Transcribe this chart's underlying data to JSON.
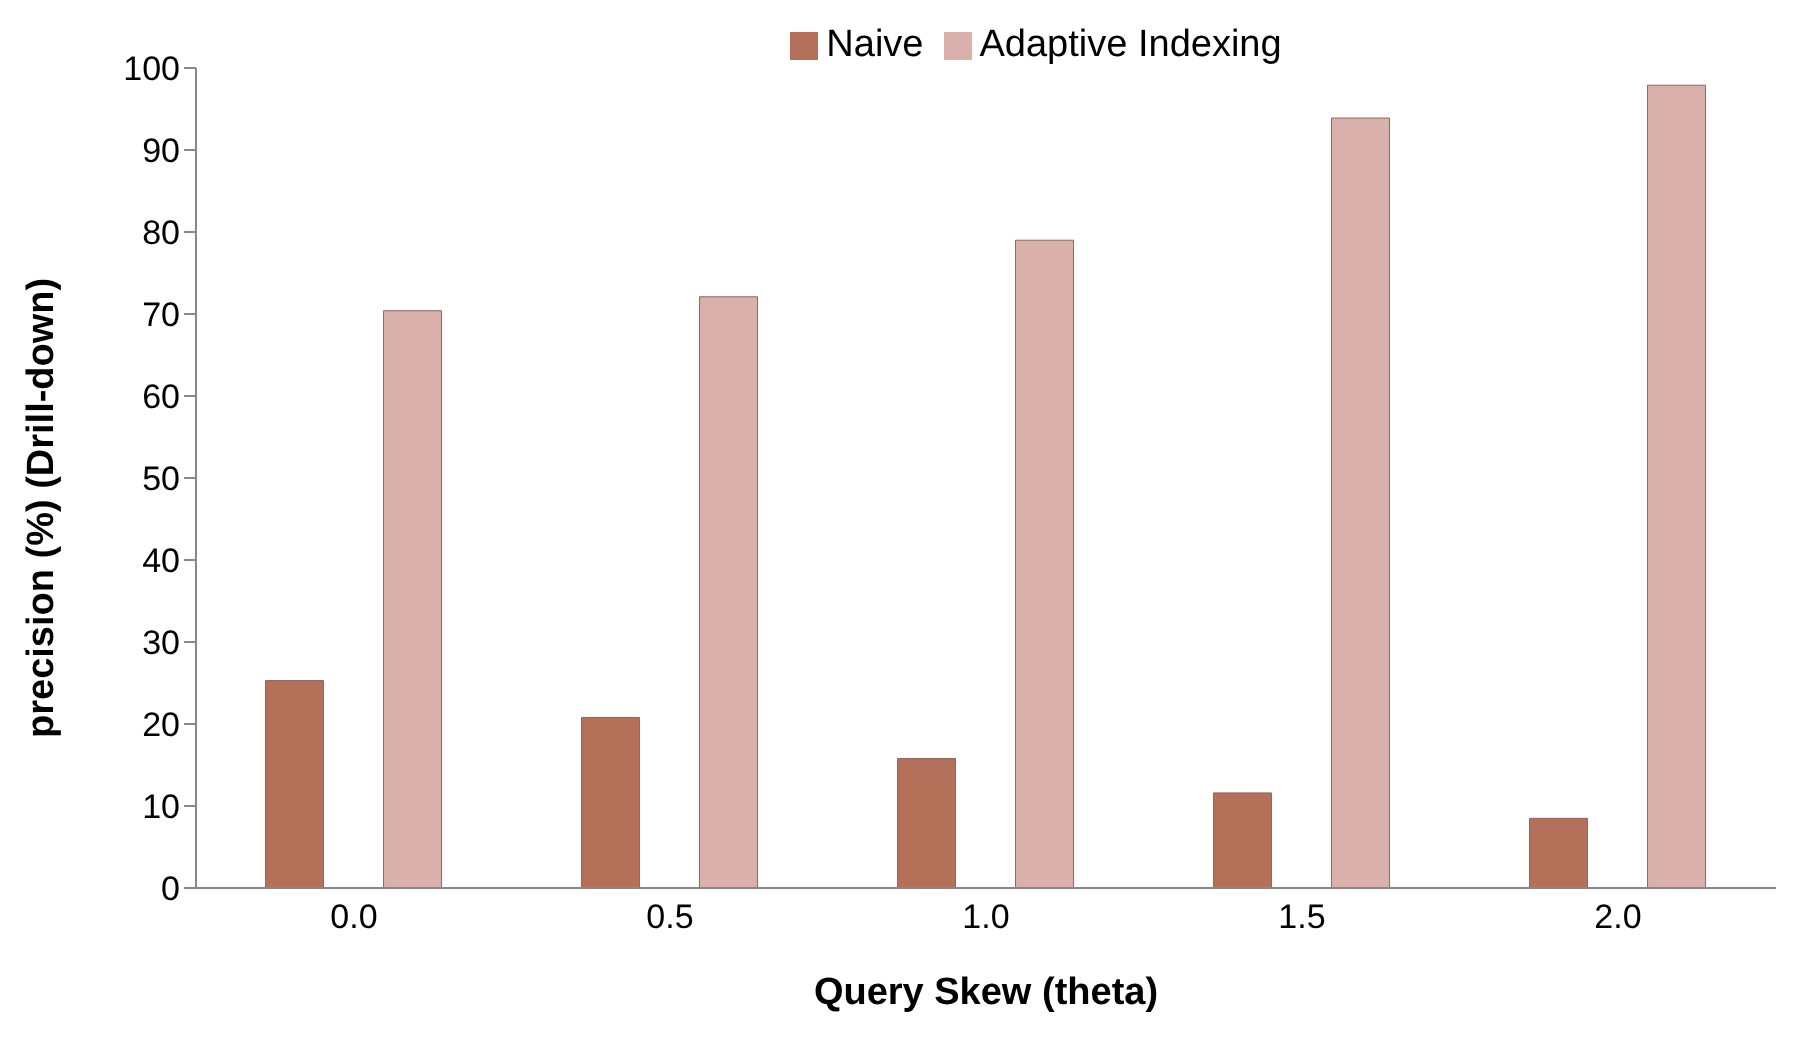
{
  "chart_data": {
    "type": "bar",
    "xlabel": "Query Skew (theta)",
    "ylabel": "precision (%) (Drill-down)",
    "categories": [
      "0.0",
      "0.5",
      "1.0",
      "1.5",
      "2.0"
    ],
    "series": [
      {
        "name": "Naive",
        "color": "#b5705a",
        "values": [
          25.3,
          20.8,
          15.8,
          11.6,
          8.5
        ]
      },
      {
        "name": "Adaptive Indexing",
        "color": "#d9b1aa",
        "values": [
          70.4,
          72.1,
          79,
          93.9,
          97.9
        ]
      }
    ],
    "ylim": [
      0,
      100
    ],
    "yticks": [
      0,
      10,
      20,
      30,
      40,
      50,
      60,
      70,
      80,
      90,
      100
    ],
    "grid": false,
    "legend": "top"
  }
}
